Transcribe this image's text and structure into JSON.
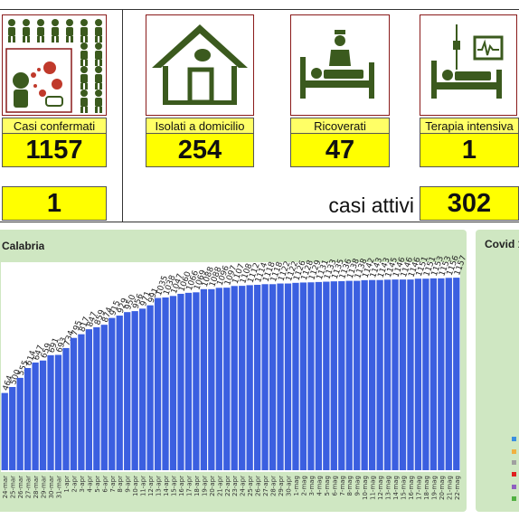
{
  "cards": [
    {
      "label": "Casi confermati",
      "value": "1157"
    },
    {
      "label": "Isolati a domicilio",
      "value": "254"
    },
    {
      "label": "Ricoverati",
      "value": "47"
    },
    {
      "label": "Terapia intensiva",
      "value": "1"
    }
  ],
  "deaths_value": "1",
  "active": {
    "label": "casi attivi",
    "value": "302"
  },
  "left_panel": {
    "title": "Calabria"
  },
  "right_panel": {
    "title": "Covid 1"
  },
  "colors": {
    "bar": "#3b5fe0",
    "panel": "#cfe7c2",
    "card_value": "#ffff00",
    "card_label": "#ffff66",
    "icon": "#3b5a1e"
  },
  "chart_data": {
    "type": "bar",
    "title": "Calabria",
    "categories": [
      "24-mar",
      "25-mar",
      "26-mar",
      "27-mar",
      "28-mar",
      "29-mar",
      "30-mar",
      "31-mar",
      "1-apr",
      "2-apr",
      "3-apr",
      "4-apr",
      "5-apr",
      "6-apr",
      "7-apr",
      "8-apr",
      "9-apr",
      "10-apr",
      "11-apr",
      "12-apr",
      "13-apr",
      "14-apr",
      "15-apr",
      "16-apr",
      "17-apr",
      "18-apr",
      "19-apr",
      "20-apr",
      "21-apr",
      "22-apr",
      "23-apr",
      "24-apr",
      "25-apr",
      "26-apr",
      "27-apr",
      "28-apr",
      "29-apr",
      "30-apr",
      "1-mag",
      "2-mag",
      "3-mag",
      "4-mag",
      "5-mag",
      "6-mag",
      "7-mag",
      "8-mag",
      "9-mag",
      "10-mag",
      "11-mag",
      "12-mag",
      "13-mag",
      "14-mag",
      "15-mag",
      "16-mag",
      "17-mag",
      "18-mag",
      "19-mag",
      "20-mag",
      "21-mag",
      "22-mag"
    ],
    "values": [
      464,
      500,
      555,
      614,
      647,
      659,
      691,
      693,
      734,
      795,
      817,
      847,
      859,
      874,
      915,
      929,
      950,
      956,
      971,
      991,
      1035,
      1038,
      1047,
      1060,
      1066,
      1069,
      1088,
      1088,
      1096,
      1097,
      1107,
      1108,
      1112,
      1114,
      1118,
      1118,
      1122,
      1122,
      1126,
      1128,
      1129,
      1131,
      1133,
      1135,
      1136,
      1138,
      1138,
      1142,
      1143,
      1143,
      1145,
      1146,
      1146,
      1146,
      1151,
      1151,
      1153,
      1153,
      1156,
      1157
    ],
    "ylim": [
      0,
      1250
    ],
    "grid": false,
    "data_labels": true
  }
}
